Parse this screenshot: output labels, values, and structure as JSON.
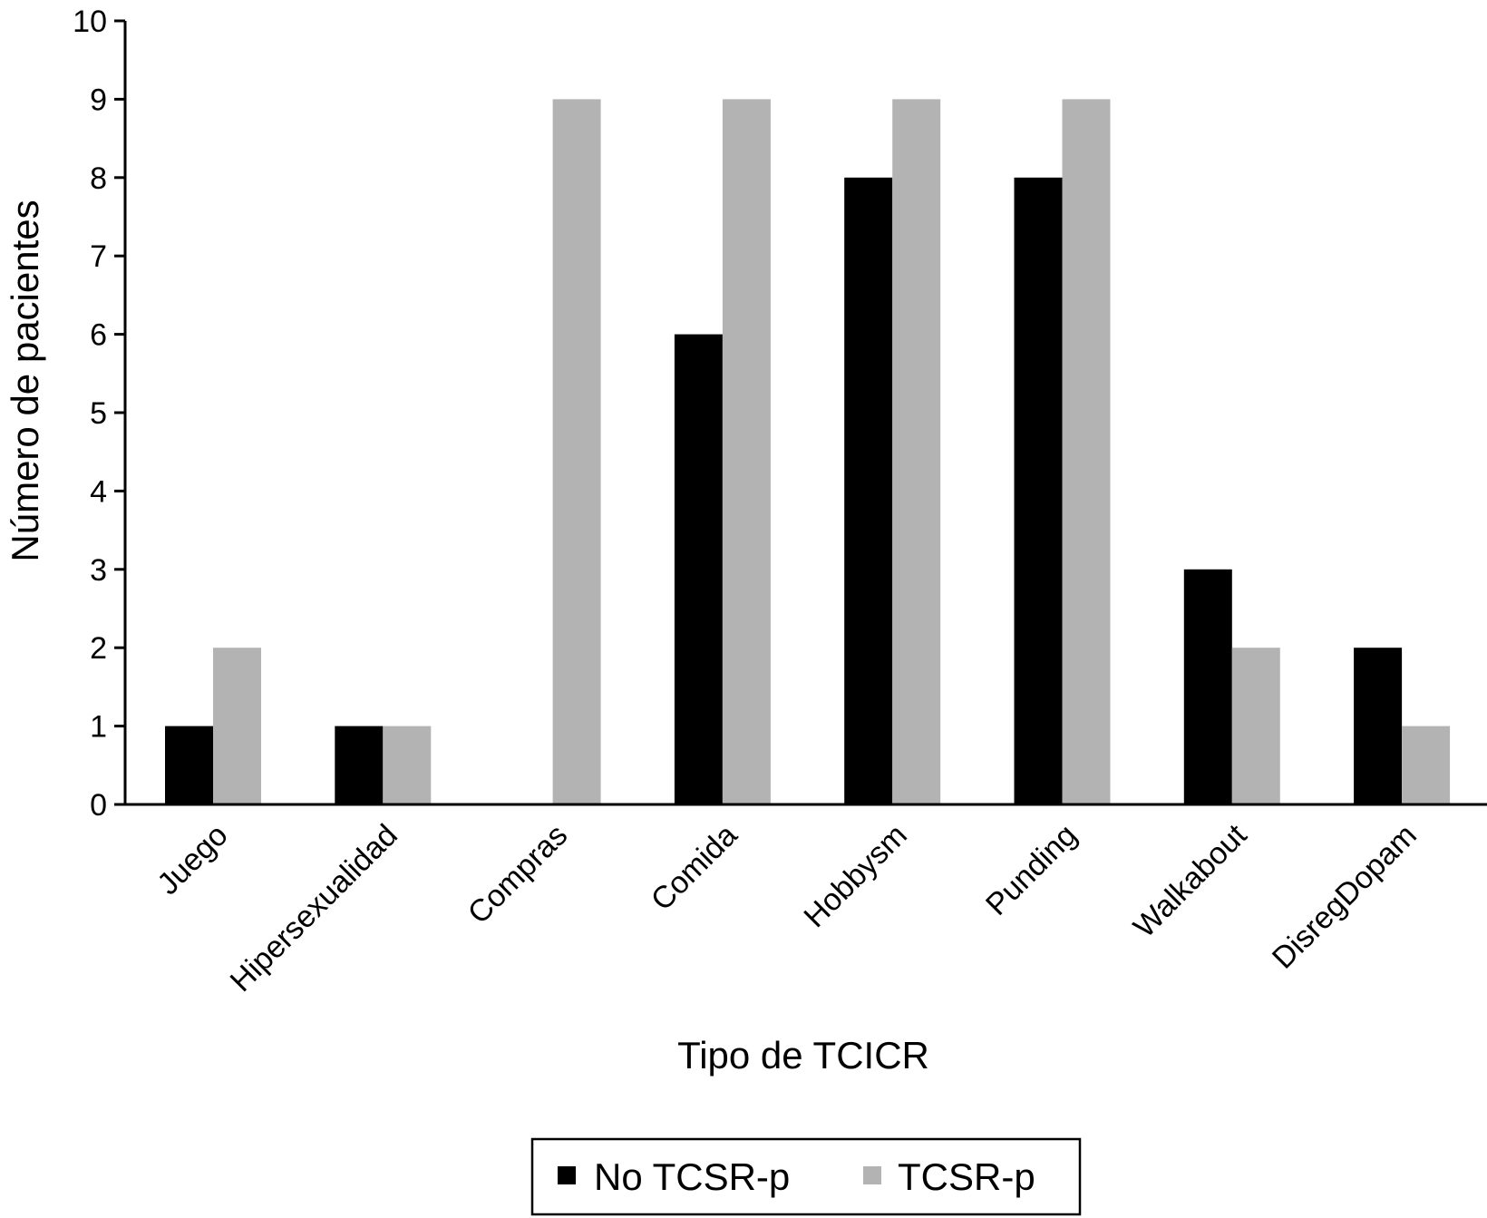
{
  "chart_data": {
    "type": "bar",
    "title": "",
    "xlabel": "Tipo de TCICR",
    "ylabel": "Número de pacientes",
    "ylim": [
      0,
      10
    ],
    "yticks": [
      0,
      1,
      2,
      3,
      4,
      5,
      6,
      7,
      8,
      9,
      10
    ],
    "categories": [
      "Juego",
      "Hipersexualidad",
      "Compras",
      "Comida",
      "Hobbysm",
      "Punding",
      "Walkabout",
      "DisregDopam"
    ],
    "series": [
      {
        "name": "No TCSR-p",
        "color": "#000000",
        "values": [
          1,
          1,
          0,
          6,
          8,
          8,
          3,
          2
        ]
      },
      {
        "name": "TCSR-p",
        "color": "#b3b3b3",
        "values": [
          2,
          1,
          9,
          9,
          9,
          9,
          2,
          1
        ]
      }
    ],
    "grid": false,
    "legend": {
      "placement": "bottom-center",
      "boxed": true
    }
  }
}
